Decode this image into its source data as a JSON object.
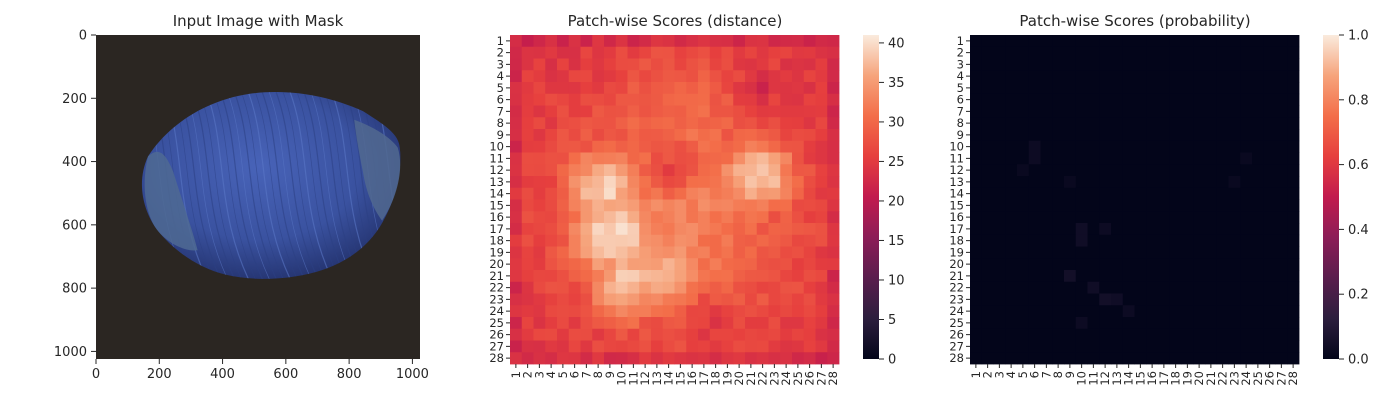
{
  "chart_data": [
    {
      "type": "image",
      "title": "Input Image with Mask",
      "xticks": [
        0,
        200,
        400,
        600,
        800,
        1000
      ],
      "yticks": [
        0,
        200,
        400,
        600,
        800,
        1000
      ],
      "xlim": [
        0,
        1024
      ],
      "ylim": [
        1024,
        0
      ],
      "subject": "blue-tinted hazelnut on a dark background",
      "colors": {
        "background": "#2b2622",
        "object": "#3a52a0",
        "object_edge": "#4d6a9a"
      }
    },
    {
      "type": "heatmap",
      "title": "Patch-wise Scores (distance)",
      "rows": [
        "1",
        "2",
        "3",
        "4",
        "5",
        "6",
        "7",
        "8",
        "9",
        "10",
        "11",
        "12",
        "13",
        "14",
        "15",
        "16",
        "17",
        "18",
        "19",
        "20",
        "21",
        "22",
        "23",
        "24",
        "25",
        "26",
        "27",
        "28"
      ],
      "cols": [
        "1",
        "2",
        "3",
        "4",
        "5",
        "6",
        "7",
        "8",
        "9",
        "10",
        "11",
        "12",
        "13",
        "14",
        "15",
        "16",
        "17",
        "18",
        "19",
        "20",
        "21",
        "22",
        "23",
        "24",
        "25",
        "26",
        "27",
        "28"
      ],
      "colorbar": {
        "min": 0,
        "max": 41,
        "ticks": [
          0,
          5,
          10,
          15,
          20,
          25,
          30,
          35,
          40
        ],
        "colormap": "rocket"
      },
      "value_model": {
        "note": "approximate per-cell values reconstructed from color; border ~22-26, bright central region ~33-41",
        "border_level": 24,
        "blobs": [
          {
            "row": 12.5,
            "col": 21.5,
            "r": 2.5,
            "peak": 39
          },
          {
            "row": 13.5,
            "col": 8.5,
            "r": 2.5,
            "peak": 39
          },
          {
            "row": 17.5,
            "col": 9.5,
            "r": 3.0,
            "peak": 40
          },
          {
            "row": 21.5,
            "col": 10.5,
            "r": 2.5,
            "peak": 39
          },
          {
            "row": 20.5,
            "col": 13.5,
            "r": 3.0,
            "peak": 37
          },
          {
            "row": 15.5,
            "col": 14.5,
            "r": 7.5,
            "peak": 33
          },
          {
            "row": 9.0,
            "col": 15.0,
            "r": 5.0,
            "peak": 31
          }
        ],
        "dips": [
          {
            "row": 12.0,
            "col": 14.5,
            "r": 1.5,
            "depth": 6
          },
          {
            "row": 5.5,
            "col": 21.5,
            "r": 1.0,
            "depth": 4
          },
          {
            "row": 24.5,
            "col": 18.0,
            "r": 1.5,
            "depth": 3
          }
        ]
      }
    },
    {
      "type": "heatmap",
      "title": "Patch-wise Scores (probability)",
      "rows": [
        "1",
        "2",
        "3",
        "4",
        "5",
        "6",
        "7",
        "8",
        "9",
        "10",
        "11",
        "12",
        "13",
        "14",
        "15",
        "16",
        "17",
        "18",
        "19",
        "20",
        "21",
        "22",
        "23",
        "24",
        "25",
        "26",
        "27",
        "28"
      ],
      "cols": [
        "1",
        "2",
        "3",
        "4",
        "5",
        "6",
        "7",
        "8",
        "9",
        "10",
        "11",
        "12",
        "13",
        "14",
        "15",
        "16",
        "17",
        "18",
        "19",
        "20",
        "21",
        "22",
        "23",
        "24",
        "25",
        "26",
        "27",
        "28"
      ],
      "colorbar": {
        "min": 0.0,
        "max": 1.0,
        "ticks": [
          0.0,
          0.2,
          0.4,
          0.6,
          0.8,
          1.0
        ],
        "tick_labels": [
          "0.0",
          "0.2",
          "0.4",
          "0.6",
          "0.8",
          "1.0"
        ],
        "colormap": "rocket"
      },
      "value_model": {
        "note": "near-zero everywhere; a few cells very slightly elevated",
        "base": 0.0,
        "hotspots": [
          {
            "row": 10,
            "col": 6,
            "v": 0.03
          },
          {
            "row": 11,
            "col": 6,
            "v": 0.03
          },
          {
            "row": 12,
            "col": 5,
            "v": 0.02
          },
          {
            "row": 13,
            "col": 9,
            "v": 0.02
          },
          {
            "row": 17,
            "col": 10,
            "v": 0.04
          },
          {
            "row": 18,
            "col": 10,
            "v": 0.04
          },
          {
            "row": 17,
            "col": 12,
            "v": 0.03
          },
          {
            "row": 21,
            "col": 9,
            "v": 0.05
          },
          {
            "row": 22,
            "col": 11,
            "v": 0.04
          },
          {
            "row": 23,
            "col": 12,
            "v": 0.05
          },
          {
            "row": 23,
            "col": 13,
            "v": 0.04
          },
          {
            "row": 24,
            "col": 14,
            "v": 0.03
          },
          {
            "row": 25,
            "col": 10,
            "v": 0.03
          },
          {
            "row": 11,
            "col": 24,
            "v": 0.02
          },
          {
            "row": 13,
            "col": 23,
            "v": 0.02
          }
        ]
      }
    }
  ]
}
